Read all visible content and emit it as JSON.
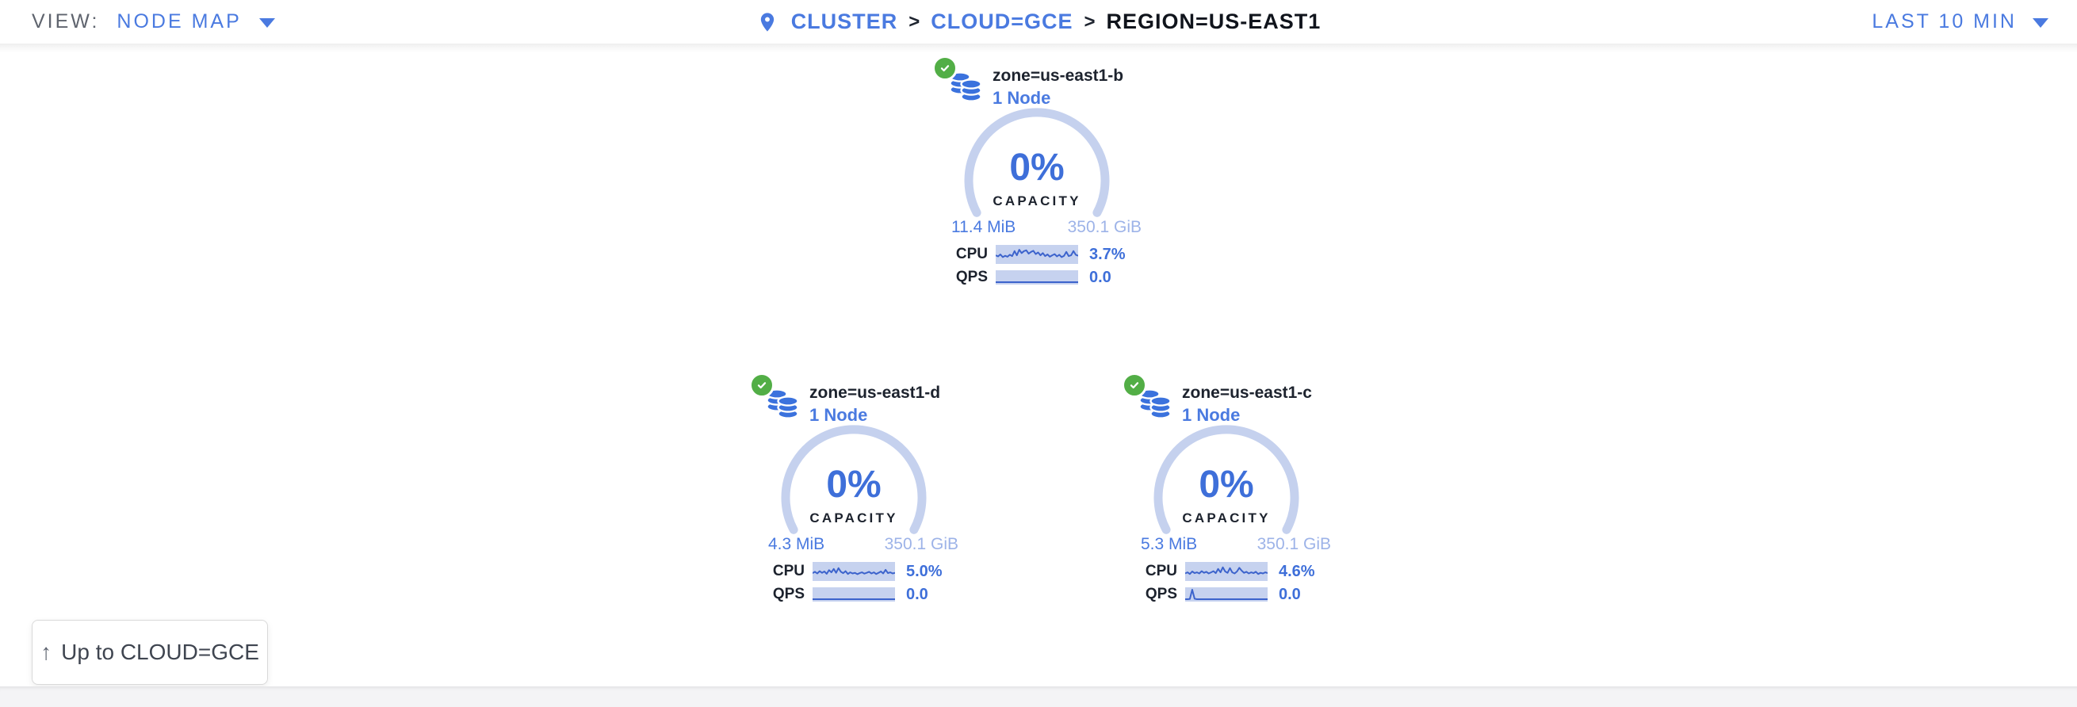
{
  "topbar": {
    "view_label": "VIEW:",
    "view_selector": "NODE MAP",
    "time_selector": "LAST 10 MIN",
    "breadcrumb": {
      "separator": ">",
      "items": [
        "CLUSTER",
        "CLOUD=GCE",
        "REGION=US-EAST1"
      ]
    }
  },
  "zones": [
    {
      "status": "healthy",
      "name": "zone=us-east1-b",
      "node_count": "1 Node",
      "capacity_pct": "0%",
      "capacity_label": "CAPACITY",
      "capacity_used": "11.4 MiB",
      "capacity_total": "350.1 GiB",
      "cpu_label": "CPU",
      "cpu_value": "3.7%",
      "qps_label": "QPS",
      "qps_value": "0.0",
      "cpu_spark": [
        0.55,
        0.62,
        0.5,
        0.66,
        0.58,
        0.64,
        0.52,
        0.6,
        0.3,
        0.55,
        0.22,
        0.42,
        0.3,
        0.25,
        0.45,
        0.35,
        0.28,
        0.48,
        0.38,
        0.55,
        0.42,
        0.6,
        0.5,
        0.64,
        0.55,
        0.48,
        0.62,
        0.52,
        0.66,
        0.58,
        0.35,
        0.6,
        0.55,
        0.3,
        0.52,
        0.58
      ],
      "qps_spark": [
        0.9,
        0.9,
        0.9,
        0.9,
        0.9,
        0.9,
        0.9,
        0.9,
        0.9,
        0.9,
        0.9,
        0.9,
        0.9,
        0.9,
        0.9,
        0.9,
        0.9,
        0.9,
        0.9,
        0.9,
        0.9,
        0.9,
        0.9,
        0.9,
        0.9,
        0.9,
        0.9,
        0.9,
        0.9,
        0.9,
        0.9,
        0.9,
        0.9,
        0.9,
        0.9,
        0.9
      ]
    },
    {
      "status": "healthy",
      "name": "zone=us-east1-d",
      "node_count": "1 Node",
      "capacity_pct": "0%",
      "capacity_label": "CAPACITY",
      "capacity_used": "4.3 MiB",
      "capacity_total": "350.1 GiB",
      "cpu_label": "CPU",
      "cpu_value": "5.0%",
      "qps_label": "QPS",
      "qps_value": "0.0",
      "cpu_spark": [
        0.6,
        0.52,
        0.62,
        0.48,
        0.58,
        0.5,
        0.64,
        0.42,
        0.55,
        0.35,
        0.58,
        0.3,
        0.52,
        0.6,
        0.48,
        0.65,
        0.55,
        0.62,
        0.58,
        0.66,
        0.6,
        0.55,
        0.63,
        0.58,
        0.52,
        0.62,
        0.55,
        0.65,
        0.58,
        0.5,
        0.62,
        0.4,
        0.6,
        0.55,
        0.62,
        0.58
      ],
      "qps_spark": [
        0.9,
        0.9,
        0.9,
        0.9,
        0.9,
        0.9,
        0.9,
        0.9,
        0.9,
        0.9,
        0.9,
        0.9,
        0.9,
        0.9,
        0.9,
        0.9,
        0.9,
        0.9,
        0.9,
        0.9,
        0.9,
        0.9,
        0.9,
        0.9,
        0.9,
        0.9,
        0.9,
        0.9,
        0.9,
        0.9,
        0.9,
        0.9,
        0.9,
        0.9,
        0.9,
        0.9
      ]
    },
    {
      "status": "healthy",
      "name": "zone=us-east1-c",
      "node_count": "1 Node",
      "capacity_pct": "0%",
      "capacity_label": "CAPACITY",
      "capacity_used": "5.3 MiB",
      "capacity_total": "350.1 GiB",
      "cpu_label": "CPU",
      "cpu_value": "4.6%",
      "qps_label": "QPS",
      "qps_value": "0.0",
      "cpu_spark": [
        0.62,
        0.55,
        0.65,
        0.5,
        0.6,
        0.55,
        0.62,
        0.48,
        0.58,
        0.52,
        0.62,
        0.55,
        0.48,
        0.6,
        0.35,
        0.55,
        0.25,
        0.5,
        0.58,
        0.3,
        0.55,
        0.62,
        0.5,
        0.28,
        0.45,
        0.58,
        0.52,
        0.62,
        0.55,
        0.6,
        0.52,
        0.65,
        0.58,
        0.62,
        0.55,
        0.6
      ],
      "qps_spark": [
        0.9,
        0.9,
        0.88,
        0.1,
        0.86,
        0.9,
        0.9,
        0.9,
        0.9,
        0.9,
        0.9,
        0.9,
        0.9,
        0.9,
        0.9,
        0.9,
        0.9,
        0.9,
        0.9,
        0.9,
        0.9,
        0.9,
        0.9,
        0.9,
        0.9,
        0.9,
        0.9,
        0.9,
        0.9,
        0.9,
        0.9,
        0.9,
        0.9,
        0.9,
        0.9,
        0.9
      ]
    }
  ],
  "up_button": {
    "arrow": "↑",
    "label": "Up to CLOUD=GCE"
  },
  "colors": {
    "accent_blue": "#4a7ae0",
    "value_blue": "#3e6fd9",
    "pale_blue": "#9db3e8",
    "arc_blue": "#c5d1ee",
    "spark_bg": "#c6d2ef",
    "spark_line": "#3c63cc",
    "healthy_green": "#52ae46",
    "dark_text": "#1d232e"
  }
}
